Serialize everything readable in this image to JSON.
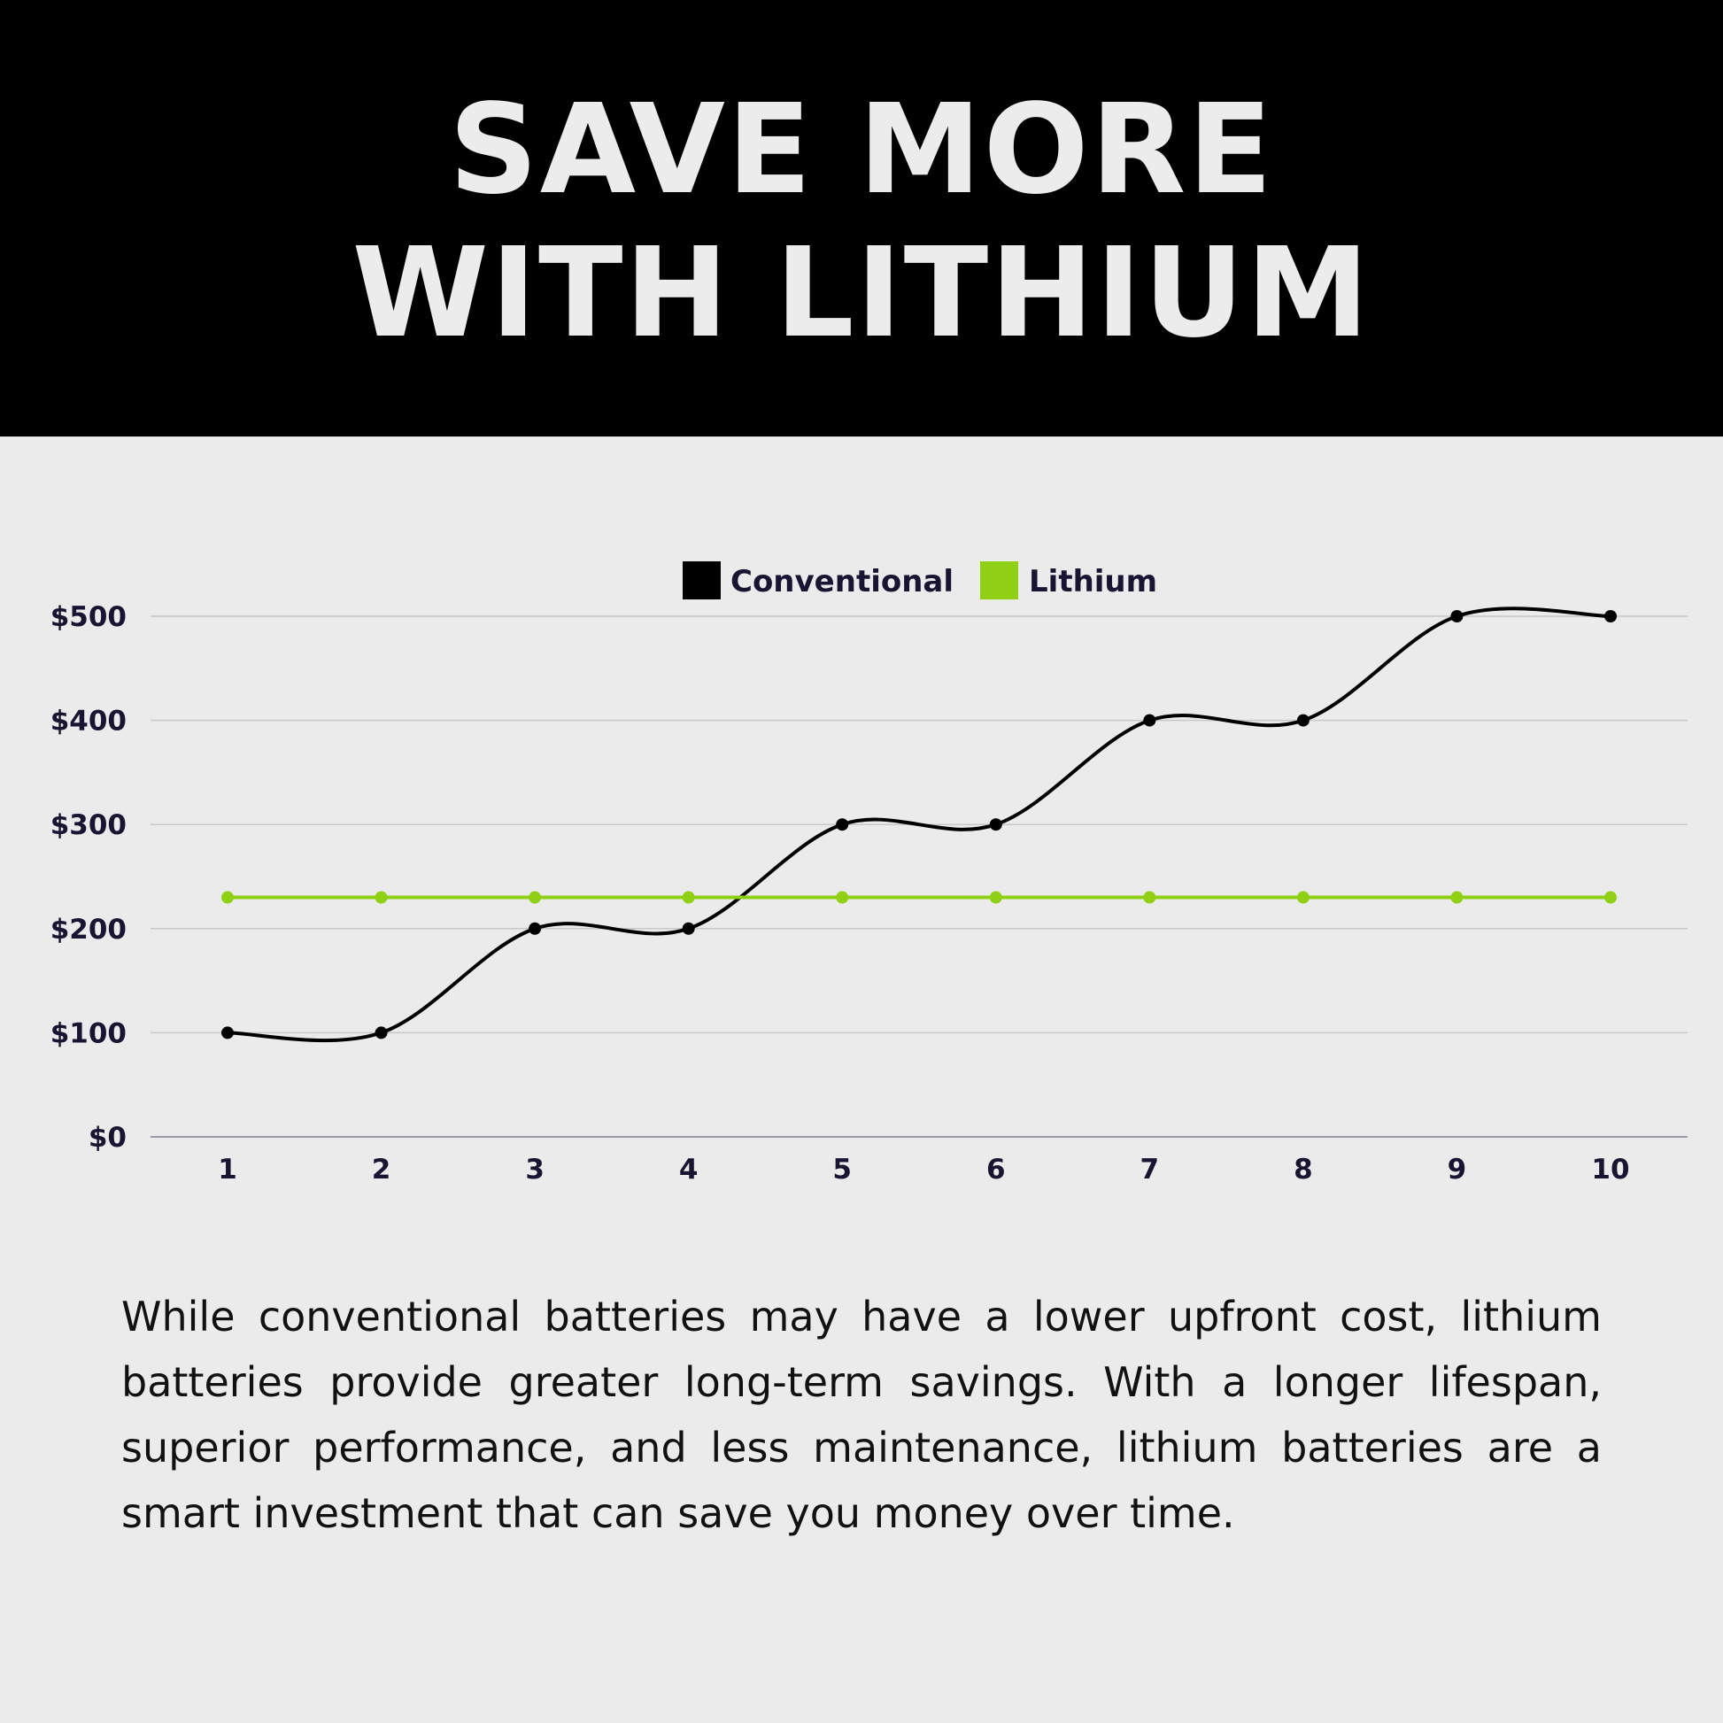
{
  "header": {
    "title_line1": "SAVE MORE",
    "title_line2": "WITH LITHIUM"
  },
  "chart_data": {
    "type": "line",
    "categories": [
      "1",
      "2",
      "3",
      "4",
      "5",
      "6",
      "7",
      "8",
      "9",
      "10"
    ],
    "series": [
      {
        "name": "Conventional",
        "color": "#000000",
        "values": [
          100,
          100,
          200,
          200,
          300,
          300,
          400,
          400,
          500,
          500
        ],
        "smooth": true
      },
      {
        "name": "Lithium",
        "color": "#8fd014",
        "values": [
          230,
          230,
          230,
          230,
          230,
          230,
          230,
          230,
          230,
          230
        ],
        "smooth": false
      }
    ],
    "yticks": [
      "$0",
      "$100",
      "$200",
      "$300",
      "$400",
      "$500"
    ],
    "ylim": [
      0,
      500
    ],
    "grid": true,
    "legend": "top-center"
  },
  "body": {
    "paragraph": "While conventional batteries may have a lower upfront cost, lithium batteries provide greater long-term savings. With a longer lifespan, superior performance, and less maintenance, lithium batteries are a smart investment that can save you money over time."
  }
}
